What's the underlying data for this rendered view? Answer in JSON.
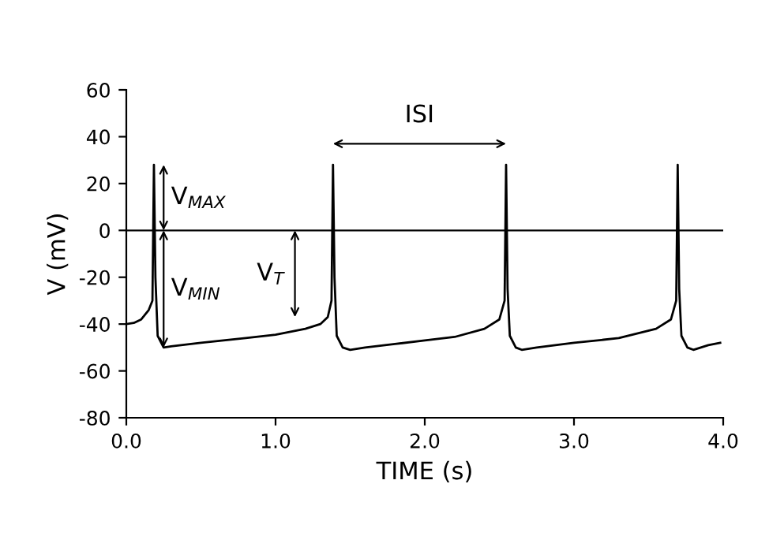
{
  "chart_data": {
    "type": "line",
    "xlabel": "TIME (s)",
    "ylabel": "V (mV)",
    "x": [
      0,
      0.05,
      0.1,
      0.15,
      0.175,
      0.185,
      0.195,
      0.21,
      0.25,
      0.3,
      0.5,
      0.8,
      1.0,
      1.2,
      1.3,
      1.35,
      1.375,
      1.385,
      1.395,
      1.41,
      1.45,
      1.5,
      1.6,
      1.8,
      2.0,
      2.2,
      2.4,
      2.5,
      2.535,
      2.545,
      2.555,
      2.57,
      2.61,
      2.65,
      2.75,
      3.0,
      3.3,
      3.55,
      3.65,
      3.685,
      3.695,
      3.705,
      3.72,
      3.76,
      3.8,
      3.9,
      3.98
    ],
    "series": [
      {
        "color": "#000000",
        "values": [
          -40,
          -39.5,
          -38,
          -34,
          -30,
          28,
          -20,
          -45,
          -50,
          -49.5,
          -48,
          -46,
          -44.5,
          -42,
          -40,
          -37,
          -30,
          28,
          -20,
          -45,
          -50,
          -51,
          -50,
          -48.5,
          -47,
          -45.5,
          -42,
          -38,
          -30,
          28,
          -25,
          -45,
          -50,
          -51,
          -50,
          -48,
          -46,
          -42,
          -38,
          -30,
          28,
          -25,
          -45,
          -50,
          -51,
          -49,
          -48
        ]
      }
    ],
    "xlim": [
      0,
      4
    ],
    "ylim": [
      -80,
      60
    ],
    "xticks": [
      {
        "value": 0,
        "label": "0.0"
      },
      {
        "value": 1,
        "label": "1.0"
      },
      {
        "value": 2,
        "label": "2.0"
      },
      {
        "value": 3,
        "label": "3.0"
      },
      {
        "value": 4,
        "label": "4.0"
      }
    ],
    "yticks": [
      -80,
      -60,
      -40,
      -20,
      0,
      20,
      40,
      60
    ],
    "ref_lines": [
      {
        "axis": "y",
        "value": 0,
        "color": "#000000"
      }
    ],
    "annotations": [
      "V$_{MAX}$",
      {
        "text": "V$_{MIN}$",
        "x": 0.25,
        "y": -50
      },
      "V$_{T}$",
      "ISI"
    ],
    "grid": false,
    "legend": false
  }
}
